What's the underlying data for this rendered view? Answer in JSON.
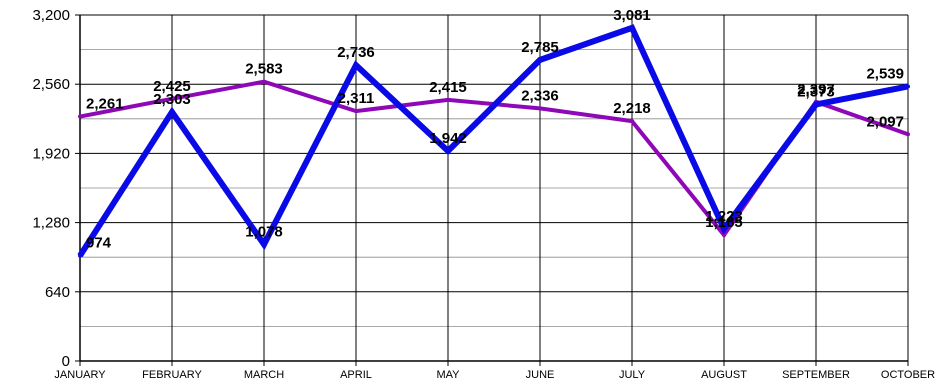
{
  "chart_data": {
    "type": "line",
    "title": "",
    "xlabel": "",
    "ylabel": "",
    "categories": [
      "JANUARY",
      "FEBRUARY",
      "MARCH",
      "APRIL",
      "MAY",
      "JUNE",
      "JULY",
      "AUGUST",
      "SEPTEMBER",
      "OCTOBER"
    ],
    "ylim": [
      0,
      3200
    ],
    "yticks": [
      "0",
      "640",
      "1,280",
      "1,920",
      "2,560",
      "3,200"
    ],
    "grid": true,
    "legend": "none",
    "series": [
      {
        "color": "#8e08b8",
        "values": [
          2261,
          2425,
          2583,
          2311,
          2415,
          2336,
          2218,
          1165,
          2397,
          2097
        ],
        "labels": [
          "2,261",
          "2,425",
          "2,583",
          "2,311",
          "2,415",
          "2,336",
          "2,218",
          "1,165",
          "2,397",
          "2,097"
        ]
      },
      {
        "color": "#0a0ae6",
        "values": [
          974,
          2303,
          1078,
          2736,
          1942,
          2785,
          3081,
          1223,
          2373,
          2539
        ],
        "labels": [
          "974",
          "2,303",
          "1,078",
          "2,736",
          "1,942",
          "2,785",
          "3,081",
          "1,223",
          "2,373",
          "2,539"
        ]
      }
    ]
  }
}
